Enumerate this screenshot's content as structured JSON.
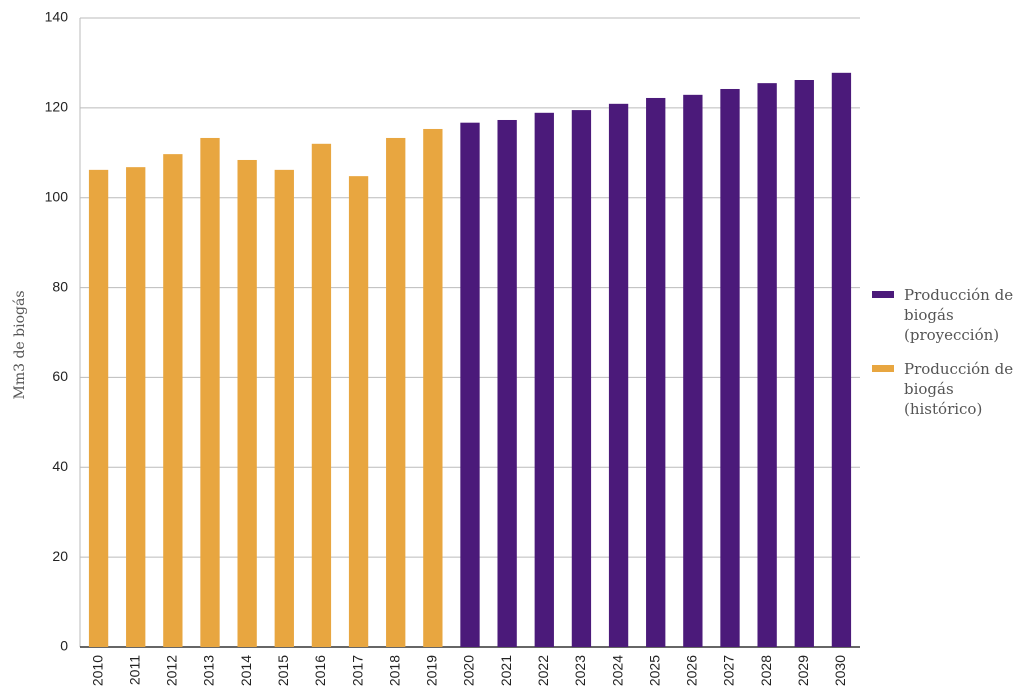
{
  "chart_data": {
    "type": "bar",
    "y_label": "Mm3 de biogás",
    "categories": [
      "2010",
      "2011",
      "2012",
      "2013",
      "2014",
      "2015",
      "2016",
      "2017",
      "2018",
      "2019",
      "2020",
      "2021",
      "2022",
      "2023",
      "2024",
      "2025",
      "2026",
      "2027",
      "2028",
      "2029",
      "2030"
    ],
    "series": [
      {
        "name": "Producción de biogás (proyección)",
        "color": "#4b1a7a",
        "values": [
          null,
          null,
          null,
          null,
          null,
          null,
          null,
          null,
          null,
          null,
          116.7,
          117.3,
          118.9,
          119.5,
          120.9,
          122.2,
          122.9,
          124.2,
          125.5,
          126.2,
          127.8
        ]
      },
      {
        "name": "Producción de biogás (histórico)",
        "color": "#e8a640",
        "values": [
          106.2,
          106.8,
          109.7,
          113.3,
          108.4,
          106.2,
          112,
          104.8,
          113.3,
          115.3,
          null,
          null,
          null,
          null,
          null,
          null,
          null,
          null,
          null,
          null,
          null
        ]
      }
    ],
    "ylim": [
      0,
      140
    ],
    "yticks": [
      0,
      20,
      40,
      60,
      80,
      100,
      120,
      140
    ],
    "grid": true,
    "legend": "right"
  }
}
